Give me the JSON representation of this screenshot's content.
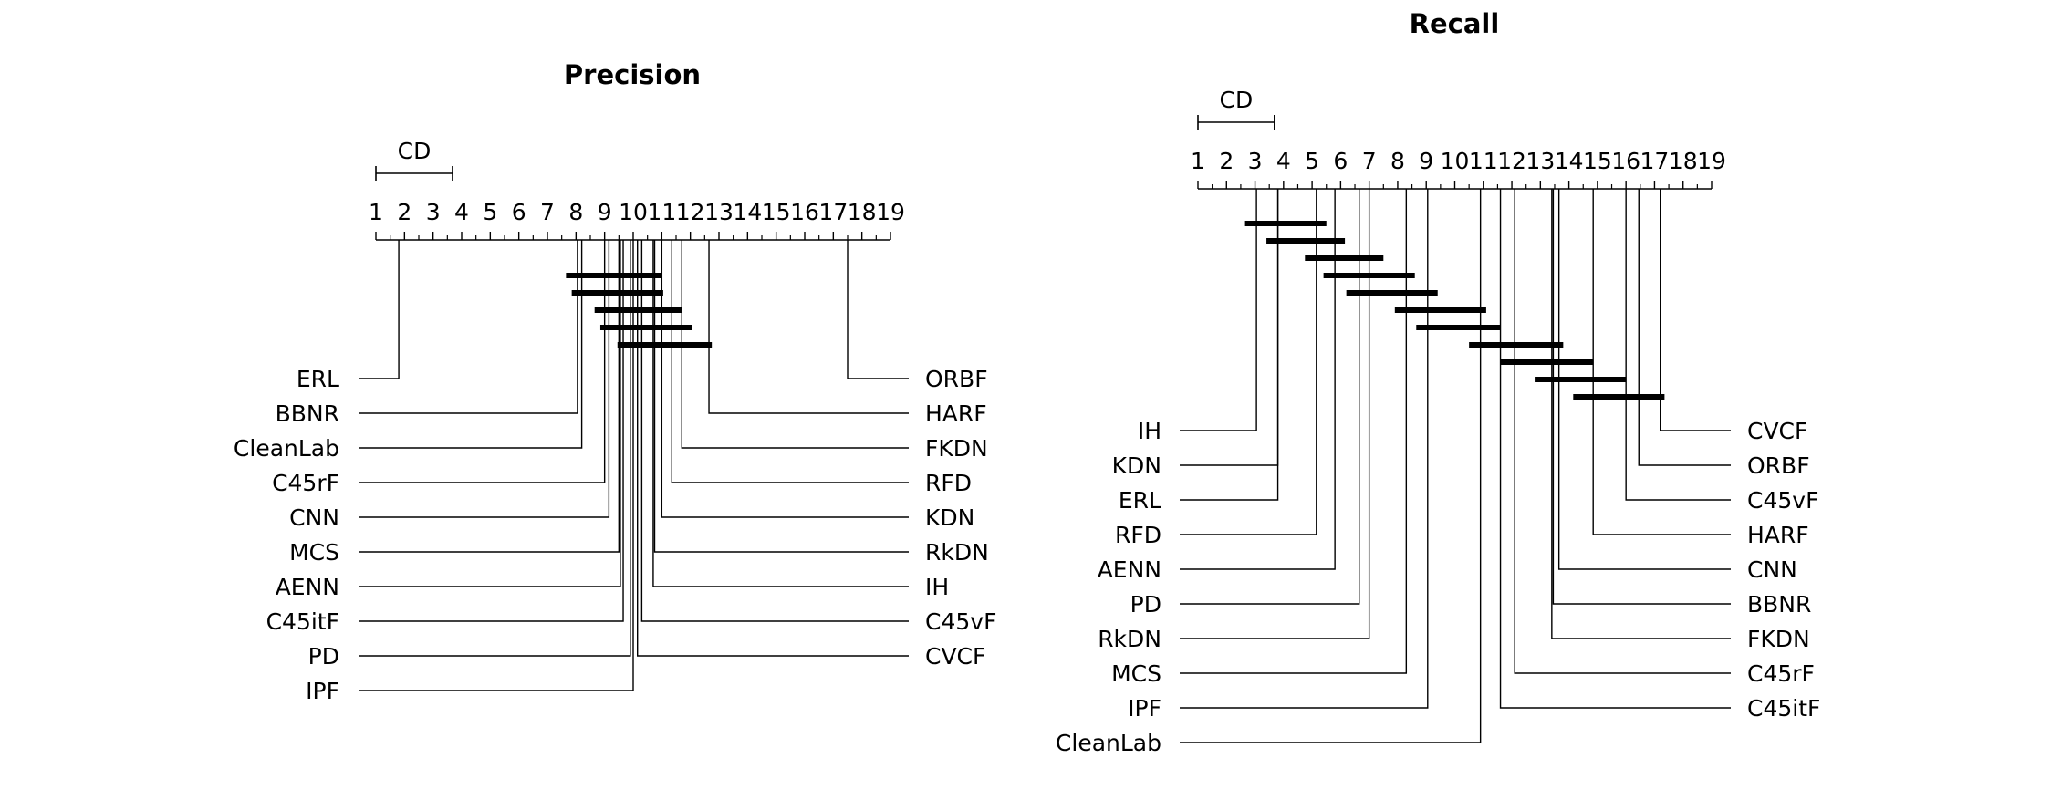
{
  "chart_data": [
    {
      "type": "critical-difference-diagram",
      "title": "Precision",
      "cd_label": "CD",
      "cd_value": 2.68,
      "axis": {
        "min": 1,
        "max": 19
      },
      "tick_labels": [
        "1",
        "2",
        "3",
        "4",
        "5",
        "6",
        "7",
        "8",
        "9",
        "10",
        "11",
        "12",
        "13",
        "14",
        "15",
        "16",
        "17",
        "18",
        "19"
      ],
      "left_methods": [
        {
          "name": "ERL",
          "rank": 1.8
        },
        {
          "name": "BBNR",
          "rank": 8.05
        },
        {
          "name": "CleanLab",
          "rank": 8.2
        },
        {
          "name": "C45rF",
          "rank": 9.0
        },
        {
          "name": "CNN",
          "rank": 9.15
        },
        {
          "name": "MCS",
          "rank": 9.5
        },
        {
          "name": "AENN",
          "rank": 9.55
        },
        {
          "name": "C45itF",
          "rank": 9.65
        },
        {
          "name": "PD",
          "rank": 9.9
        },
        {
          "name": "IPF",
          "rank": 10.0
        }
      ],
      "right_methods": [
        {
          "name": "ORBF",
          "rank": 17.5
        },
        {
          "name": "HARF",
          "rank": 12.65
        },
        {
          "name": "FKDN",
          "rank": 11.7
        },
        {
          "name": "RFD",
          "rank": 11.35
        },
        {
          "name": "KDN",
          "rank": 11.0
        },
        {
          "name": "RkDN",
          "rank": 10.75
        },
        {
          "name": "IH",
          "rank": 10.7
        },
        {
          "name": "C45vF",
          "rank": 10.3
        },
        {
          "name": "CVCF",
          "rank": 10.15
        }
      ],
      "cliques": [
        [
          7.65,
          11.0
        ],
        [
          7.85,
          11.05
        ],
        [
          8.65,
          11.7
        ],
        [
          8.85,
          12.05
        ],
        [
          9.45,
          12.75
        ]
      ]
    },
    {
      "type": "critical-difference-diagram",
      "title": "Recall",
      "cd_label": "CD",
      "cd_value": 2.68,
      "axis": {
        "min": 1,
        "max": 19
      },
      "tick_labels": [
        "1",
        "2",
        "3",
        "4",
        "5",
        "6",
        "7",
        "8",
        "9",
        "10",
        "11",
        "12",
        "13",
        "14",
        "15",
        "16",
        "17",
        "18",
        "19"
      ],
      "left_methods": [
        {
          "name": "IH",
          "rank": 3.05
        },
        {
          "name": "KDN",
          "rank": 3.8
        },
        {
          "name": "ERL",
          "rank": 3.8
        },
        {
          "name": "RFD",
          "rank": 5.15
        },
        {
          "name": "AENN",
          "rank": 5.8
        },
        {
          "name": "PD",
          "rank": 6.65
        },
        {
          "name": "RkDN",
          "rank": 7.0
        },
        {
          "name": "MCS",
          "rank": 8.3
        },
        {
          "name": "IPF",
          "rank": 9.05
        },
        {
          "name": "CleanLab",
          "rank": 10.9
        }
      ],
      "right_methods": [
        {
          "name": "CVCF",
          "rank": 17.2
        },
        {
          "name": "ORBF",
          "rank": 16.45
        },
        {
          "name": "C45vF",
          "rank": 16.0
        },
        {
          "name": "HARF",
          "rank": 14.85
        },
        {
          "name": "CNN",
          "rank": 13.65
        },
        {
          "name": "BBNR",
          "rank": 13.45
        },
        {
          "name": "FKDN",
          "rank": 13.4
        },
        {
          "name": "C45rF",
          "rank": 12.1
        },
        {
          "name": "C45itF",
          "rank": 11.6
        }
      ],
      "cliques": [
        [
          2.65,
          5.5
        ],
        [
          3.4,
          6.15
        ],
        [
          4.75,
          7.5
        ],
        [
          5.4,
          8.6
        ],
        [
          6.2,
          9.4
        ],
        [
          7.9,
          11.1
        ],
        [
          8.65,
          11.6
        ],
        [
          10.5,
          13.8
        ],
        [
          11.6,
          14.85
        ],
        [
          12.8,
          16.0
        ],
        [
          14.15,
          17.35
        ]
      ]
    }
  ]
}
